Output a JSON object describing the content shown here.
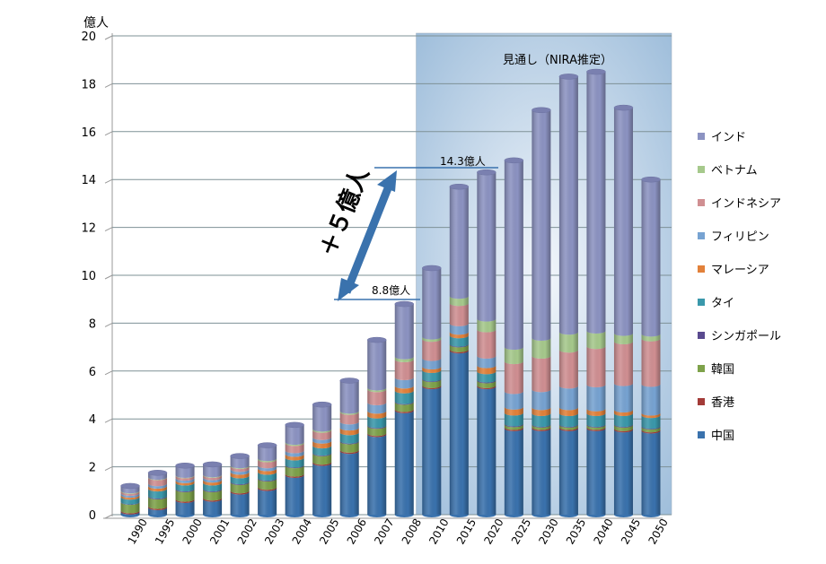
{
  "chart_data": {
    "type": "bar",
    "stacked": true,
    "style": "3d-cylinder",
    "ylabel": "億人",
    "ylim": [
      0,
      20
    ],
    "yticks": [
      0,
      2,
      4,
      6,
      8,
      10,
      12,
      14,
      16,
      18,
      20
    ],
    "grid": true,
    "legend_placement": "right",
    "categories": [
      "1990",
      "1995",
      "2000",
      "2001",
      "2002",
      "2003",
      "2004",
      "2005",
      "2006",
      "2007",
      "2008",
      "2010",
      "2015",
      "2020",
      "2025",
      "2030",
      "2035",
      "2040",
      "2045",
      "2050"
    ],
    "series": [
      {
        "name": "中国",
        "color": "#3a72ad",
        "values": [
          0.12,
          0.3,
          0.6,
          0.65,
          0.95,
          1.1,
          1.65,
          2.15,
          2.65,
          3.35,
          4.35,
          5.35,
          6.85,
          5.35,
          3.6,
          3.6,
          3.6,
          3.6,
          3.55,
          3.5
        ]
      },
      {
        "name": "香港",
        "color": "#a33b38",
        "values": [
          0.05,
          0.05,
          0.05,
          0.05,
          0.05,
          0.05,
          0.05,
          0.05,
          0.05,
          0.05,
          0.05,
          0.05,
          0.05,
          0.05,
          0.05,
          0.05,
          0.05,
          0.05,
          0.05,
          0.05
        ]
      },
      {
        "name": "韓国",
        "color": "#7ea24a",
        "values": [
          0.35,
          0.4,
          0.4,
          0.35,
          0.35,
          0.35,
          0.35,
          0.35,
          0.35,
          0.3,
          0.3,
          0.25,
          0.2,
          0.2,
          0.12,
          0.1,
          0.1,
          0.1,
          0.15,
          0.12
        ]
      },
      {
        "name": "シンガポール",
        "color": "#5a4a8f",
        "values": [
          0.02,
          0.03,
          0.03,
          0.03,
          0.03,
          0.03,
          0.03,
          0.03,
          0.03,
          0.03,
          0.03,
          0.03,
          0.03,
          0.03,
          0.03,
          0.03,
          0.03,
          0.03,
          0.03,
          0.03
        ]
      },
      {
        "name": "タイ",
        "color": "#3a98ab",
        "values": [
          0.2,
          0.3,
          0.25,
          0.25,
          0.25,
          0.25,
          0.3,
          0.3,
          0.35,
          0.4,
          0.45,
          0.35,
          0.35,
          0.35,
          0.45,
          0.45,
          0.45,
          0.45,
          0.45,
          0.45
        ]
      },
      {
        "name": "マレーシア",
        "color": "#e2813a",
        "values": [
          0.08,
          0.12,
          0.1,
          0.12,
          0.15,
          0.15,
          0.15,
          0.2,
          0.2,
          0.2,
          0.2,
          0.15,
          0.15,
          0.25,
          0.25,
          0.25,
          0.25,
          0.2,
          0.15,
          0.1
        ]
      },
      {
        "name": "フィリピン",
        "color": "#77a3d2",
        "values": [
          0.08,
          0.1,
          0.1,
          0.1,
          0.12,
          0.12,
          0.15,
          0.15,
          0.25,
          0.35,
          0.35,
          0.35,
          0.35,
          0.4,
          0.65,
          0.75,
          0.9,
          1.0,
          1.1,
          1.2
        ]
      },
      {
        "name": "インドネシア",
        "color": "#d08f92",
        "values": [
          0.08,
          0.25,
          0.1,
          0.1,
          0.12,
          0.25,
          0.3,
          0.3,
          0.4,
          0.55,
          0.75,
          0.8,
          0.85,
          1.1,
          1.25,
          1.4,
          1.5,
          1.6,
          1.75,
          1.9
        ]
      },
      {
        "name": "ベトナム",
        "color": "#a6c98c",
        "values": [
          0.02,
          0.02,
          0.02,
          0.02,
          0.03,
          0.05,
          0.05,
          0.05,
          0.05,
          0.07,
          0.12,
          0.1,
          0.3,
          0.45,
          0.6,
          0.75,
          0.75,
          0.65,
          0.35,
          0.2
        ]
      },
      {
        "name": "インド",
        "color": "#8c93c2",
        "values": [
          0.2,
          0.18,
          0.4,
          0.43,
          0.4,
          0.55,
          0.72,
          1.02,
          1.27,
          2.0,
          2.2,
          2.87,
          4.57,
          6.12,
          7.8,
          9.52,
          10.67,
          10.82,
          9.42,
          6.45
        ]
      }
    ],
    "annotations": {
      "forecast_label": "見通し（NIRA推定）",
      "forecast_start": "2010",
      "label_2008": "8.8億人",
      "label_2020": "14.3億人",
      "increase_label": "＋５億人"
    }
  }
}
